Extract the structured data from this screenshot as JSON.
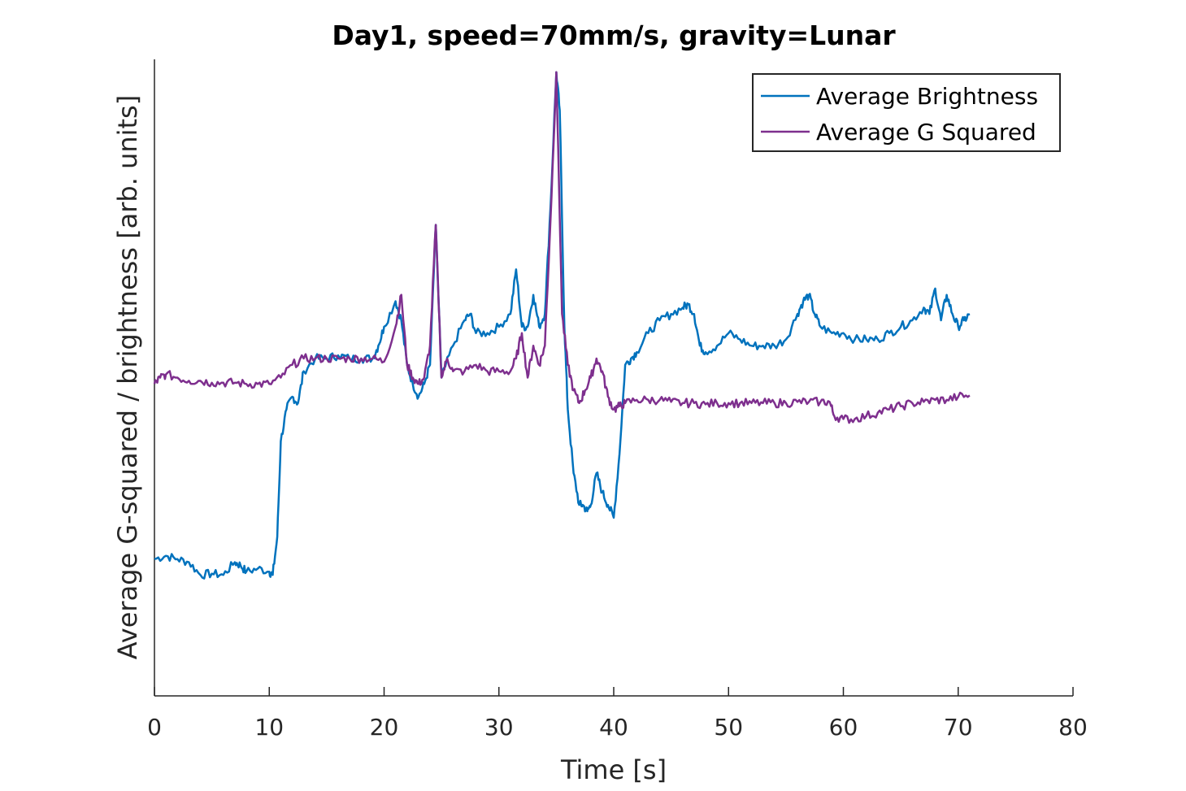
{
  "chart_data": {
    "type": "line",
    "title": "Day1, speed=70mm/s, gravity=Lunar",
    "xlabel": "Time [s]",
    "ylabel": "Average G-squared / brightness [arb. units]",
    "xlim": [
      0,
      80
    ],
    "ylim": [
      0,
      100
    ],
    "x_ticks": [
      "0",
      "10",
      "20",
      "30",
      "40",
      "50",
      "60",
      "70",
      "80"
    ],
    "y_ticks_shown": false,
    "grid": false,
    "legend_position": "top-right",
    "series": [
      {
        "name": "Average Brightness",
        "color": "#0072BD",
        "x": [
          0,
          1,
          2,
          3,
          4,
          5,
          6,
          7,
          7.5,
          8,
          9,
          10,
          10.3,
          10.7,
          11,
          11.5,
          12,
          12.5,
          13,
          14,
          15,
          16,
          17,
          18,
          19,
          19.5,
          20,
          21,
          21.5,
          22,
          22.5,
          23,
          23.5,
          24,
          24.5,
          25,
          26,
          27,
          27.5,
          28,
          29,
          30,
          31,
          31.5,
          32,
          32.5,
          33,
          33.5,
          34,
          34.5,
          35,
          35.3,
          35.7,
          36,
          36.5,
          37,
          37.3,
          37.7,
          38,
          38.5,
          39,
          39.5,
          40,
          40.5,
          41,
          41.5,
          42,
          43,
          44,
          45,
          46,
          46.5,
          47,
          47.5,
          48,
          49,
          50,
          51,
          52,
          53,
          54,
          55,
          56,
          56.5,
          57,
          57.5,
          58,
          59,
          60,
          61,
          62,
          63,
          64,
          65,
          66,
          67,
          67.5,
          68,
          68.5,
          69,
          69.5,
          70,
          70.5,
          71
        ],
        "y": [
          21.5,
          22,
          21.5,
          21,
          19,
          19.2,
          19,
          21,
          20.5,
          19.5,
          20,
          19.5,
          19,
          25,
          40,
          45,
          47,
          46,
          51,
          53,
          53,
          53.5,
          53,
          53,
          53,
          55,
          58,
          62,
          59,
          52,
          49,
          47,
          49,
          52,
          74,
          50,
          55,
          59,
          60,
          57,
          57,
          58,
          60,
          67,
          58,
          58,
          63,
          58,
          60,
          77,
          98,
          92,
          58,
          45,
          35,
          30,
          30,
          29,
          30,
          35,
          32,
          30,
          28,
          38,
          52,
          53,
          54,
          57,
          59,
          60,
          61,
          61.5,
          60,
          55,
          54,
          55,
          57,
          56,
          55,
          55,
          55,
          56,
          60,
          62,
          63,
          60,
          58,
          57,
          57,
          56,
          56,
          56,
          57,
          58,
          59,
          61,
          60,
          64,
          59,
          63,
          60,
          58,
          59,
          60
        ]
      },
      {
        "name": "Average G Squared",
        "color": "#7E2F8E",
        "x": [
          0,
          0.5,
          1,
          2,
          3,
          4,
          5,
          6,
          7,
          8,
          9,
          10,
          11,
          12,
          13,
          14,
          15,
          16,
          17,
          18,
          19,
          20,
          21,
          21.5,
          22,
          22.5,
          23,
          23.5,
          24,
          24.5,
          25,
          25.5,
          26,
          27,
          28,
          29,
          30,
          31,
          31.5,
          32,
          32.5,
          33,
          33.5,
          34,
          34.5,
          35,
          35.5,
          36,
          36.5,
          37,
          37.5,
          38,
          38.5,
          39,
          39.5,
          40,
          40.5,
          41,
          42,
          43,
          44,
          45,
          46,
          47,
          48,
          49,
          50,
          51,
          52,
          53,
          54,
          55,
          56,
          57,
          58,
          58.8,
          59.2,
          60,
          61,
          62,
          63,
          64,
          65,
          66,
          67,
          68,
          69,
          70,
          71
        ],
        "y": [
          49,
          50,
          50.5,
          50,
          49.5,
          49.5,
          49.2,
          49.2,
          49.2,
          49,
          49,
          49,
          50,
          52,
          53,
          53,
          53,
          53,
          53,
          53,
          53,
          52.5,
          58,
          63,
          52,
          50,
          49,
          50,
          55,
          74,
          50,
          53,
          51,
          51,
          52,
          51,
          51,
          51,
          53,
          57,
          50,
          55,
          52,
          55,
          75,
          98,
          60,
          52,
          48,
          46,
          48,
          50,
          53,
          51,
          47,
          45,
          45.5,
          46,
          46.5,
          46.5,
          46.5,
          46.2,
          46,
          46,
          45.8,
          46,
          46,
          46,
          46,
          46,
          46,
          46,
          46.2,
          46.2,
          46.2,
          46.2,
          44,
          43.5,
          43.5,
          44,
          44.5,
          45,
          45.5,
          46,
          46.2,
          46.5,
          46.5,
          47,
          47.2
        ]
      }
    ]
  }
}
